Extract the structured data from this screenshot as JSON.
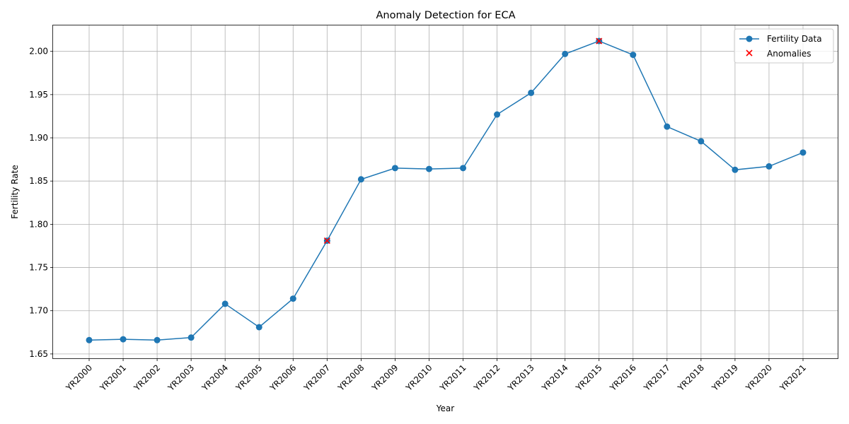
{
  "chart_data": {
    "type": "line",
    "title": "Anomaly Detection for ECA",
    "xlabel": "Year",
    "ylabel": "Fertility Rate",
    "ylim": [
      1.645,
      2.03
    ],
    "yticks": [
      "1.65",
      "1.70",
      "1.75",
      "1.80",
      "1.85",
      "1.90",
      "1.95",
      "2.00"
    ],
    "grid": true,
    "legend_position": "top-right",
    "categories": [
      "YR2000",
      "YR2001",
      "YR2002",
      "YR2003",
      "YR2004",
      "YR2005",
      "YR2006",
      "YR2007",
      "YR2008",
      "YR2009",
      "YR2010",
      "YR2011",
      "YR2012",
      "YR2013",
      "YR2014",
      "YR2015",
      "YR2016",
      "YR2017",
      "YR2018",
      "YR2019",
      "YR2020",
      "YR2021"
    ],
    "series": [
      {
        "name": "Fertility Data",
        "color": "#1f77b4",
        "marker": "circle",
        "values": [
          1.666,
          1.667,
          1.666,
          1.669,
          1.708,
          1.681,
          1.714,
          1.781,
          1.852,
          1.865,
          1.864,
          1.865,
          1.927,
          1.952,
          1.997,
          2.012,
          1.996,
          1.913,
          1.896,
          1.863,
          1.867,
          1.883
        ]
      },
      {
        "name": "Anomalies",
        "color": "#ff0000",
        "marker": "x",
        "x": [
          "YR2007",
          "YR2015"
        ],
        "values": [
          1.781,
          2.012
        ]
      }
    ]
  }
}
